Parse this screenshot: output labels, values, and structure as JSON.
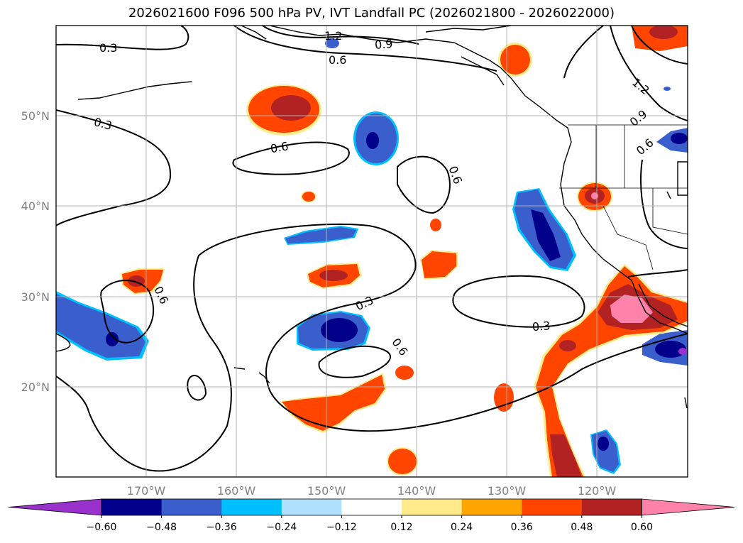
{
  "title": "2026021600 F096 500 hPa PV, IVT Landfall PC (2026021800 - 2026022000)",
  "lat_ticks": [
    "50°N",
    "40°N",
    "30°N",
    "20°N"
  ],
  "lon_ticks": [
    "170°W",
    "160°W",
    "150°W",
    "140°W",
    "130°W",
    "120°W"
  ],
  "colorbar": {
    "tick_labels": [
      "−0.60",
      "−0.48",
      "−0.36",
      "−0.24",
      "−0.12",
      "0.12",
      "0.24",
      "0.36",
      "0.48",
      "0.60"
    ],
    "colors": [
      "#9932cc",
      "#00008b",
      "#3a5fcd",
      "#00bfff",
      "#b0e2ff",
      "#ffffff",
      "#ffeb8c",
      "#ffa500",
      "#ff4500",
      "#b22222",
      "#ff82ab"
    ]
  },
  "contour_labels": [
    "0.3",
    "0.3",
    "0.6",
    "1.2",
    "0.9",
    "0.6",
    "0.6",
    "0.6",
    "0.3",
    "0.3",
    "0.6",
    "1.2",
    "0.9",
    "0.6"
  ],
  "colors": {
    "grid": "#b0b0b0",
    "tick_label": "#808080",
    "coastline": "#000000"
  }
}
